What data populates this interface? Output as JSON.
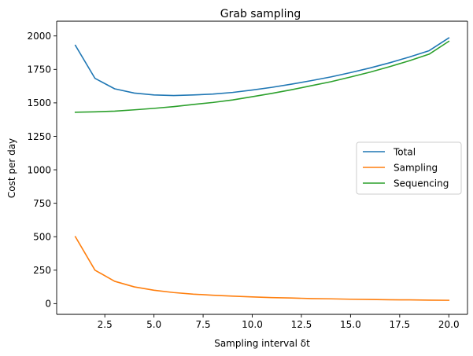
{
  "chart_data": {
    "type": "line",
    "title": "Grab sampling",
    "xlabel": "Sampling interval δt",
    "ylabel": "Cost per day",
    "xlim": [
      0.05,
      20.95
    ],
    "ylim": [
      -80,
      2110
    ],
    "xticks": [
      2.5,
      5.0,
      7.5,
      10.0,
      12.5,
      15.0,
      17.5,
      20.0
    ],
    "xtick_labels": [
      "2.5",
      "5.0",
      "7.5",
      "10.0",
      "12.5",
      "15.0",
      "17.5",
      "20.0"
    ],
    "yticks": [
      0,
      250,
      500,
      750,
      1000,
      1250,
      1500,
      1750,
      2000
    ],
    "ytick_labels": [
      "0",
      "250",
      "500",
      "750",
      "1000",
      "1250",
      "1500",
      "1750",
      "2000"
    ],
    "grid": false,
    "legend_position": "center-right",
    "x": [
      1,
      2,
      3,
      4,
      5,
      6,
      7,
      8,
      9,
      10,
      11,
      12,
      13,
      14,
      15,
      16,
      17,
      18,
      19,
      20
    ],
    "series": [
      {
        "name": "Total",
        "color": "#1f77b4",
        "values": [
          1930,
          1683,
          1605,
          1573,
          1559,
          1555,
          1559,
          1566,
          1578,
          1596,
          1616,
          1640,
          1666,
          1694,
          1726,
          1761,
          1800,
          1843,
          1890,
          1985
        ]
      },
      {
        "name": "Sampling",
        "color": "#ff7f0e",
        "values": [
          500,
          250,
          167,
          125,
          100,
          83,
          71,
          63,
          56,
          50,
          45,
          42,
          38,
          36,
          33,
          31,
          29,
          28,
          26,
          25
        ]
      },
      {
        "name": "Sequencing",
        "color": "#2ca02c",
        "values": [
          1430,
          1433,
          1438,
          1448,
          1459,
          1472,
          1488,
          1503,
          1522,
          1546,
          1571,
          1598,
          1628,
          1658,
          1693,
          1730,
          1771,
          1815,
          1864,
          1960
        ]
      }
    ]
  }
}
